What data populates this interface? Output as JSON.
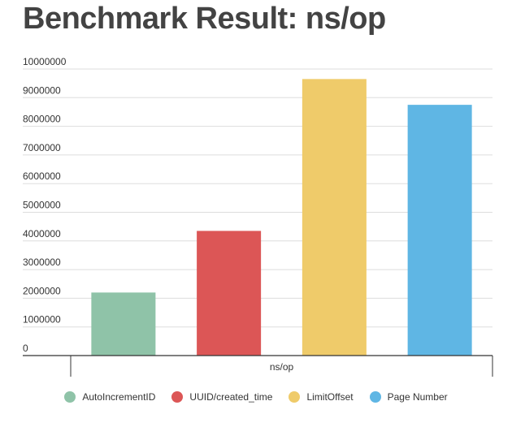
{
  "chart_data": {
    "type": "bar",
    "title": "Benchmark Result: ns/op",
    "categories": [
      "ns/op"
    ],
    "series": [
      {
        "name": "AutoIncrementID",
        "values": [
          2200000
        ],
        "color": "#8fc3a8"
      },
      {
        "name": "UUID/created_time",
        "values": [
          4350000
        ],
        "color": "#dc5656"
      },
      {
        "name": "LimitOffset",
        "values": [
          9650000
        ],
        "color": "#efcb6a"
      },
      {
        "name": "Page Number",
        "values": [
          8750000
        ],
        "color": "#5fb6e4"
      }
    ],
    "ylim": [
      0,
      10000000
    ],
    "yticks": [
      0,
      1000000,
      2000000,
      3000000,
      4000000,
      5000000,
      6000000,
      7000000,
      8000000,
      9000000,
      10000000
    ],
    "grid": true,
    "legend_position": "bottom"
  }
}
